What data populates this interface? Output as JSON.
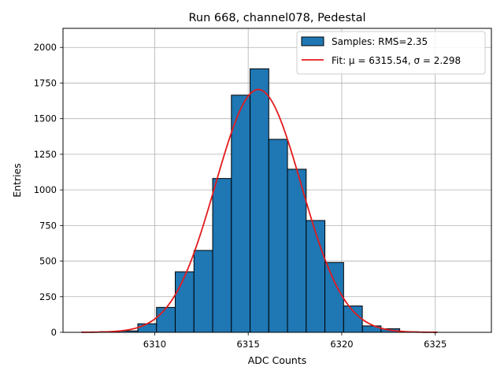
{
  "chart_data": {
    "type": "histogram",
    "title": "Run 668, channel078, Pedestal",
    "xlabel": "ADC Counts",
    "ylabel": "Entries",
    "xlim": [
      6305.1,
      6328.0
    ],
    "ylim": [
      0,
      2134
    ],
    "xticks": [
      6310,
      6315,
      6320,
      6325
    ],
    "yticks": [
      0,
      250,
      500,
      750,
      1000,
      1250,
      1500,
      1750,
      2000
    ],
    "grid": true,
    "legend_position": "top-right",
    "bar_color": "#1f77b4",
    "fit_color": "#e41a1c",
    "histogram": {
      "name": "Samples",
      "legend_label": "Samples: RMS=2.35",
      "bin_edges": [
        6306.1,
        6307.1,
        6308.1,
        6309.1,
        6310.1,
        6311.1,
        6312.1,
        6313.1,
        6314.1,
        6315.1,
        6316.1,
        6317.1,
        6318.1,
        6319.1,
        6320.1,
        6321.1,
        6322.1,
        6323.1,
        6324.1,
        6325.1
      ],
      "counts": [
        2,
        5,
        10,
        60,
        175,
        425,
        575,
        1080,
        1665,
        1850,
        1355,
        1145,
        785,
        490,
        185,
        45,
        25,
        4,
        2
      ]
    },
    "fit": {
      "name": "Fit",
      "legend_label": "Fit: μ = 6315.54, σ = 2.298",
      "mu": 6315.54,
      "sigma": 2.298,
      "amplitude": 1705,
      "x_range": [
        6306.1,
        6325.1
      ]
    }
  }
}
